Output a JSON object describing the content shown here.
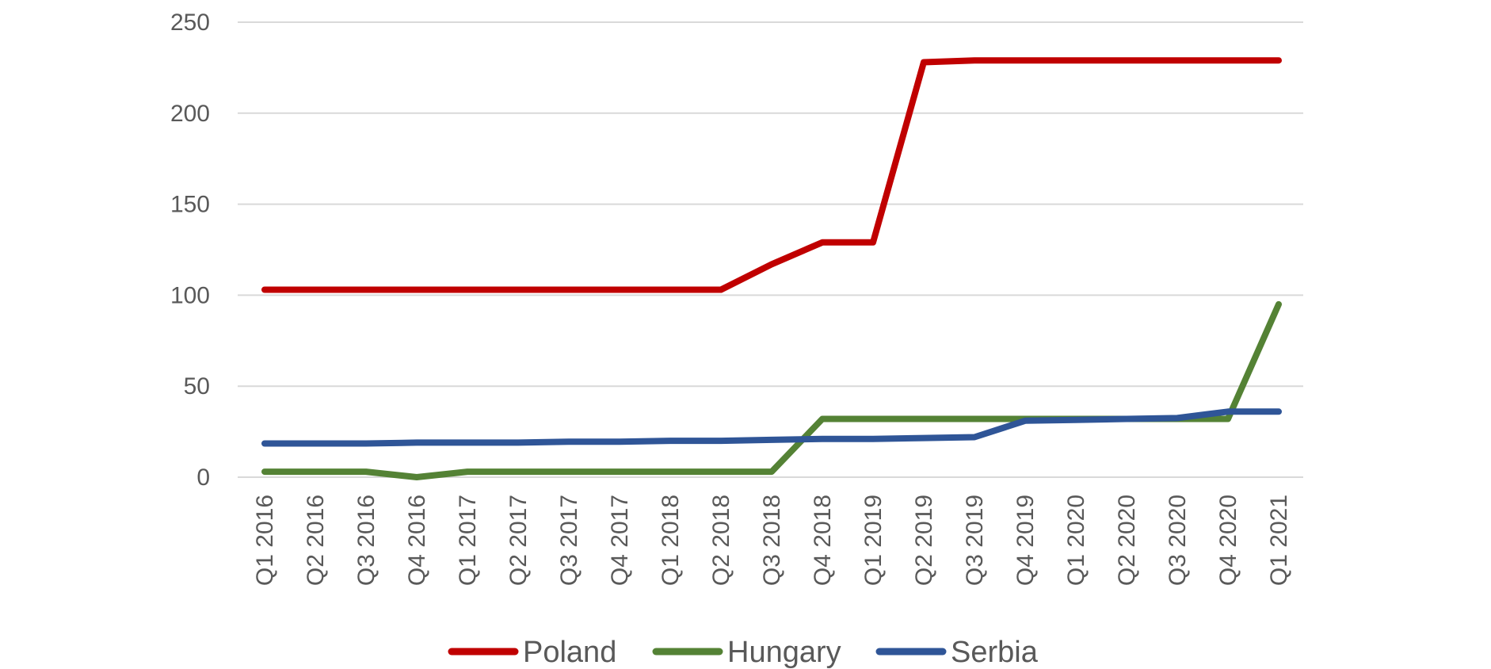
{
  "chart_data": {
    "type": "line",
    "title": "",
    "xlabel": "",
    "ylabel": "",
    "ylim": [
      0,
      250
    ],
    "yticks": [
      0,
      50,
      100,
      150,
      200,
      250
    ],
    "grid": true,
    "legend_position": "bottom",
    "categories": [
      "Q1 2016",
      "Q2 2016",
      "Q3 2016",
      "Q4 2016",
      "Q1 2017",
      "Q2 2017",
      "Q3 2017",
      "Q4 2017",
      "Q1 2018",
      "Q2 2018",
      "Q3 2018",
      "Q4 2018",
      "Q1 2019",
      "Q2 2019",
      "Q3 2019",
      "Q4 2019",
      "Q1 2020",
      "Q2 2020",
      "Q3 2020",
      "Q4 2020",
      "Q1 2021"
    ],
    "series": [
      {
        "name": "Poland",
        "color": "#c00000",
        "values": [
          103,
          103,
          103,
          103,
          103,
          103,
          103,
          103,
          103,
          103,
          117,
          129,
          129,
          228,
          229,
          229,
          229,
          229,
          229,
          229,
          229
        ]
      },
      {
        "name": "Hungary",
        "color": "#548235",
        "values": [
          3,
          3,
          3,
          0,
          3,
          3,
          3,
          3,
          3,
          3,
          3,
          32,
          32,
          32,
          32,
          32,
          32,
          32,
          32,
          32,
          95
        ]
      },
      {
        "name": "Serbia",
        "color": "#2f5597",
        "values": [
          18.5,
          18.5,
          18.5,
          19,
          19,
          19,
          19.5,
          19.5,
          20,
          20,
          20.5,
          21,
          21,
          21.5,
          22,
          31,
          31.5,
          32,
          32.5,
          36,
          36
        ]
      }
    ]
  }
}
